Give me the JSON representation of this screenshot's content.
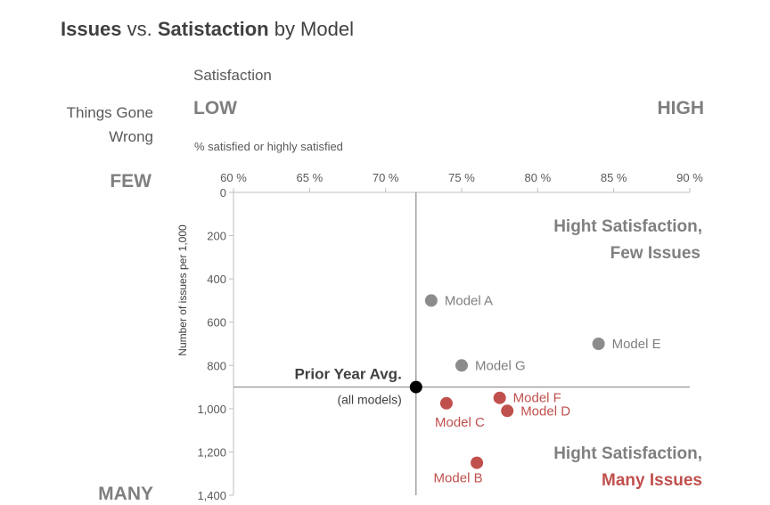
{
  "title": {
    "part1": "Issues",
    "part2": "vs.",
    "part3": "Satistaction",
    "part4": "by Model"
  },
  "x_header": {
    "label": "Satisfaction",
    "low": "LOW",
    "high": "HIGH",
    "sub": "% satisfied or highly satisfied"
  },
  "y_header": {
    "line1": "Things Gone",
    "line2": "Wrong",
    "few": "FEW",
    "many": "MANY"
  },
  "chart_data": {
    "type": "scatter",
    "xlim": [
      60,
      90
    ],
    "ylim": [
      0,
      1400
    ],
    "y_inverted": true,
    "xticks": [
      60,
      65,
      70,
      75,
      80,
      85,
      90
    ],
    "xtick_labels": [
      "60 %",
      "65 %",
      "70 %",
      "75 %",
      "80 %",
      "85 %",
      "90 %"
    ],
    "yticks": [
      0,
      200,
      400,
      600,
      800,
      1000,
      1200,
      1400
    ],
    "ytick_labels": [
      "0",
      "200",
      "400",
      "600",
      "800",
      "1,000",
      "1,200",
      "1,400"
    ],
    "ylabel": "Number of issues per 1,000",
    "grid": false,
    "reference": {
      "x": 72,
      "y": 900,
      "label": "Prior Year Avg.",
      "sublabel": "(all models)"
    },
    "points": [
      {
        "label": "Model A",
        "x": 73,
        "y": 500,
        "color": "#8c8c8c",
        "text_color": "#7f7f7f"
      },
      {
        "label": "Model E",
        "x": 84,
        "y": 700,
        "color": "#8c8c8c",
        "text_color": "#7f7f7f"
      },
      {
        "label": "Model G",
        "x": 75,
        "y": 800,
        "color": "#8c8c8c",
        "text_color": "#7f7f7f"
      },
      {
        "label": "Model F",
        "x": 77.5,
        "y": 950,
        "color": "#c0504d",
        "text_color": "#c0504d"
      },
      {
        "label": "Model C",
        "x": 74,
        "y": 975,
        "color": "#c0504d",
        "text_color": "#c0504d"
      },
      {
        "label": "Model D",
        "x": 78,
        "y": 1010,
        "color": "#c0504d",
        "text_color": "#c0504d"
      },
      {
        "label": "Model B",
        "x": 76,
        "y": 1250,
        "color": "#c0504d",
        "text_color": "#c0504d"
      }
    ],
    "annotations": {
      "top_right_line1": "Hight Satisfaction,",
      "top_right_line2": "Few Issues",
      "bottom_right_line1": "Hight Satisfaction,",
      "bottom_right_line2": "Many Issues"
    }
  }
}
